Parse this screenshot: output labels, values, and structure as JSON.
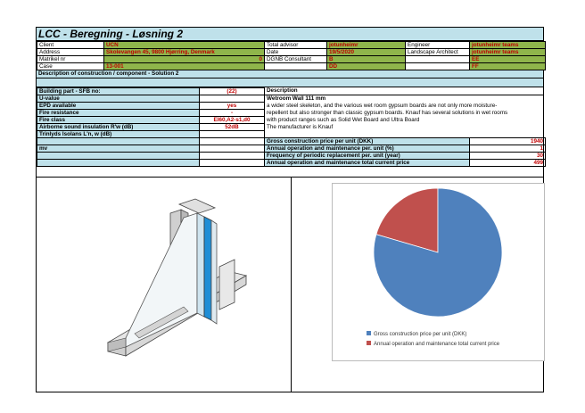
{
  "title": "LCC - Beregning - Løsning 2",
  "header": {
    "rows": [
      [
        "Client",
        "UCN",
        "Total advisor",
        "jotunheimr",
        "Engineer",
        "jotunheimr teams"
      ],
      [
        "Address",
        "Skolevangen 45, 9800 Hjørring, Denmark",
        "Date",
        "19/5/2020",
        "Landscape Architect",
        "jotunheimr teams"
      ],
      [
        "Matrikel nr",
        "0",
        "DGNB Consultant",
        "B",
        "",
        "EE"
      ],
      [
        "Case",
        "13-001",
        "",
        "DD",
        "",
        "FF"
      ]
    ]
  },
  "section_title": "Description of construction / component - Solution 2",
  "props": [
    {
      "label": "Building part - SFB no:",
      "value": "(22)"
    },
    {
      "label": "U-value",
      "value": ""
    },
    {
      "label": "EPD available",
      "value": "yes"
    },
    {
      "label": "Fire resistance",
      "value": "-"
    },
    {
      "label": "Fire class",
      "value": "EI60,A2-s1,d0"
    },
    {
      "label": "Airborne sound insulation R'w (dB)",
      "value": "52dB"
    },
    {
      "label": "Trinlyds Isolans L'n, w (dB)",
      "value": ""
    },
    {
      "label": "",
      "value": ""
    },
    {
      "label": "mv",
      "value": ""
    },
    {
      "label": "",
      "value": ""
    },
    {
      "label": "",
      "value": ""
    }
  ],
  "description": {
    "heading": "Description",
    "lines": [
      "Wetroom Wall 111 mm",
      "a wider steel skeleton, and the various wet room gypsum boards are not only more moisture-",
      "repellent but also stronger than classic gypsum boards. Knauf has several solutions in wet rooms",
      "with product ranges such as Solid Wet Board and Ultra Board",
      "The manufacturer is Knauf"
    ]
  },
  "costs": [
    {
      "label": "Gross construction price per unit (DKK)",
      "value": "1940"
    },
    {
      "label": "Annual operation and maintenance per. unit (%)",
      "value": "1"
    },
    {
      "label": "Frequency of periodic replacement per. unit (year)",
      "value": "30"
    },
    {
      "label": "Annual operation and maintenance total current price",
      "value": "499"
    }
  ],
  "chart_data": {
    "type": "pie",
    "categories": [
      "Gross construction price per unit (DKK)",
      "Annual operation and maintenance total current price"
    ],
    "values": [
      1940,
      499
    ],
    "colors": [
      "#4f81bd",
      "#c0504d"
    ],
    "legend_position": "bottom"
  }
}
